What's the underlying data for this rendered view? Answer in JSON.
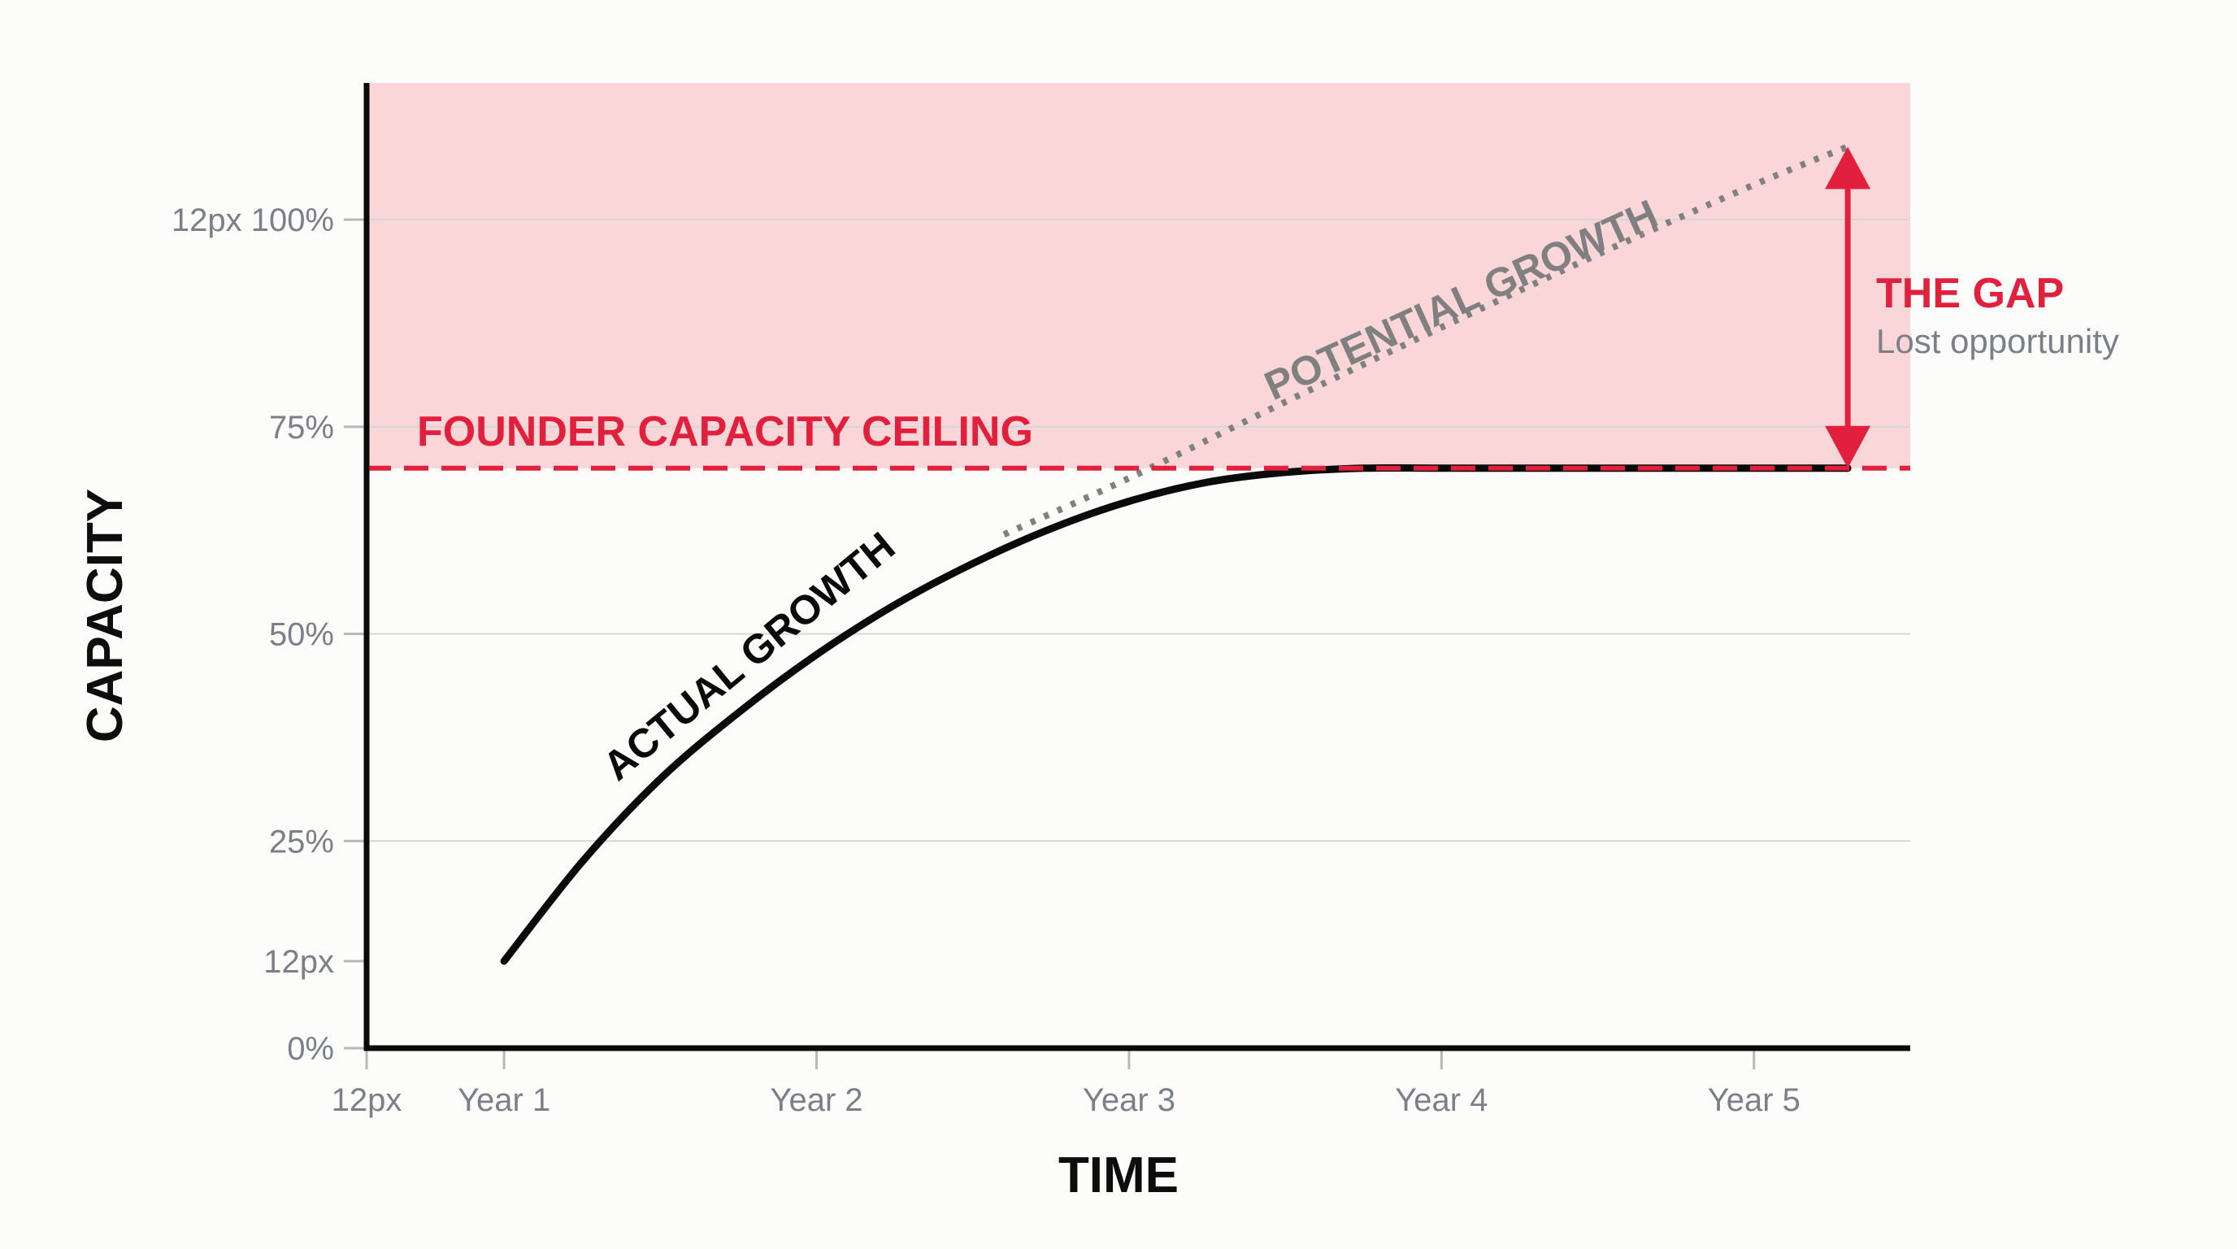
{
  "chart_data": {
    "type": "line",
    "title": "",
    "xlabel": "TIME",
    "ylabel": "CAPACITY",
    "x_ticks": [
      {
        "value": 0.56,
        "label": "12px"
      },
      {
        "value": 1,
        "label": "Year 1"
      },
      {
        "value": 2,
        "label": "Year 2"
      },
      {
        "value": 3,
        "label": "Year 3"
      },
      {
        "value": 4,
        "label": "Year 4"
      },
      {
        "value": 5,
        "label": "Year 5"
      }
    ],
    "y_ticks": [
      {
        "value": 0,
        "label": "0%"
      },
      {
        "value": 10.5,
        "label": "12px"
      },
      {
        "value": 25,
        "label": "25%"
      },
      {
        "value": 50,
        "label": "50%"
      },
      {
        "value": 75,
        "label": "75%"
      },
      {
        "value": 100,
        "label": "12px 100%"
      }
    ],
    "xlim": [
      0.56,
      5.5
    ],
    "ylim": [
      0,
      116.5
    ],
    "grid": true,
    "ceiling": {
      "label": "FOUNDER CAPACITY CEILING",
      "value": 70,
      "color": "#e0203c",
      "shaded_color": "#fbd6d8"
    },
    "series": [
      {
        "name": "ACTUAL GROWTH",
        "color": "#0a0a0a",
        "style": "solid",
        "x": [
          1.0,
          1.25,
          1.5,
          1.75,
          2.0,
          2.25,
          2.5,
          2.75,
          3.0,
          3.25,
          3.5,
          3.75,
          4.0,
          4.5,
          5.0,
          5.3
        ],
        "y": [
          10.5,
          22.5,
          32.5,
          40.5,
          47.5,
          53.5,
          58.5,
          62.7,
          66.0,
          68.3,
          69.5,
          70.0,
          70.0,
          70.0,
          70.0,
          70.0
        ]
      },
      {
        "name": "POTENTIAL GROWTH",
        "color": "#808080",
        "style": "dotted",
        "x": [
          2.6,
          3.0,
          3.5,
          4.0,
          4.5,
          5.0,
          5.3
        ],
        "y": [
          62.0,
          68.8,
          78.0,
          87.0,
          95.8,
          104.2,
          108.8
        ]
      }
    ],
    "annotation": {
      "title": "THE GAP",
      "subtitle": "Lost opportunity",
      "color": "#e0203c",
      "x": 5.3,
      "from": 70,
      "to": 108.8
    }
  }
}
